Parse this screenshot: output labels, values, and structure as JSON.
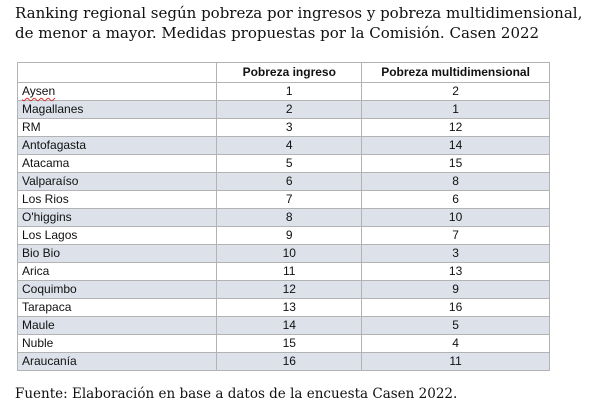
{
  "caption": "Ranking regional según pobreza por ingresos y pobreza multidimensional, de menor a mayor. Medidas propuestas por la Comisión. Casen 2022",
  "table": {
    "headers": [
      "",
      "Pobreza ingreso",
      "Pobreza multidimensional"
    ],
    "rows": [
      {
        "region": "Aysen",
        "ingreso": "1",
        "multi": "2"
      },
      {
        "region": "Magallanes",
        "ingreso": "2",
        "multi": "1"
      },
      {
        "region": "RM",
        "ingreso": "3",
        "multi": "12"
      },
      {
        "region": "Antofagasta",
        "ingreso": "4",
        "multi": "14"
      },
      {
        "region": "Atacama",
        "ingreso": "5",
        "multi": "15"
      },
      {
        "region": "Valparaíso",
        "ingreso": "6",
        "multi": "8"
      },
      {
        "region": "Los Rios",
        "ingreso": "7",
        "multi": "6"
      },
      {
        "region": "O'higgins",
        "ingreso": "8",
        "multi": "10"
      },
      {
        "region": "Los Lagos",
        "ingreso": "9",
        "multi": "7"
      },
      {
        "region": "Bio Bio",
        "ingreso": "10",
        "multi": "3"
      },
      {
        "region": "Arica",
        "ingreso": "11",
        "multi": "13"
      },
      {
        "region": "Coquimbo",
        "ingreso": "12",
        "multi": "9"
      },
      {
        "region": "Tarapaca",
        "ingreso": "13",
        "multi": "16"
      },
      {
        "region": "Maule",
        "ingreso": "14",
        "multi": "5"
      },
      {
        "region": "Nuble",
        "ingreso": "15",
        "multi": "4"
      },
      {
        "region": "Araucanía",
        "ingreso": "16",
        "multi": "11"
      }
    ]
  },
  "footer": "Fuente: Elaboración en base a datos de la encuesta Casen 2022.",
  "colors": {
    "stripe": "#dce1ea",
    "border": "#b3b3b3",
    "spellcheck": "#d9302c"
  }
}
